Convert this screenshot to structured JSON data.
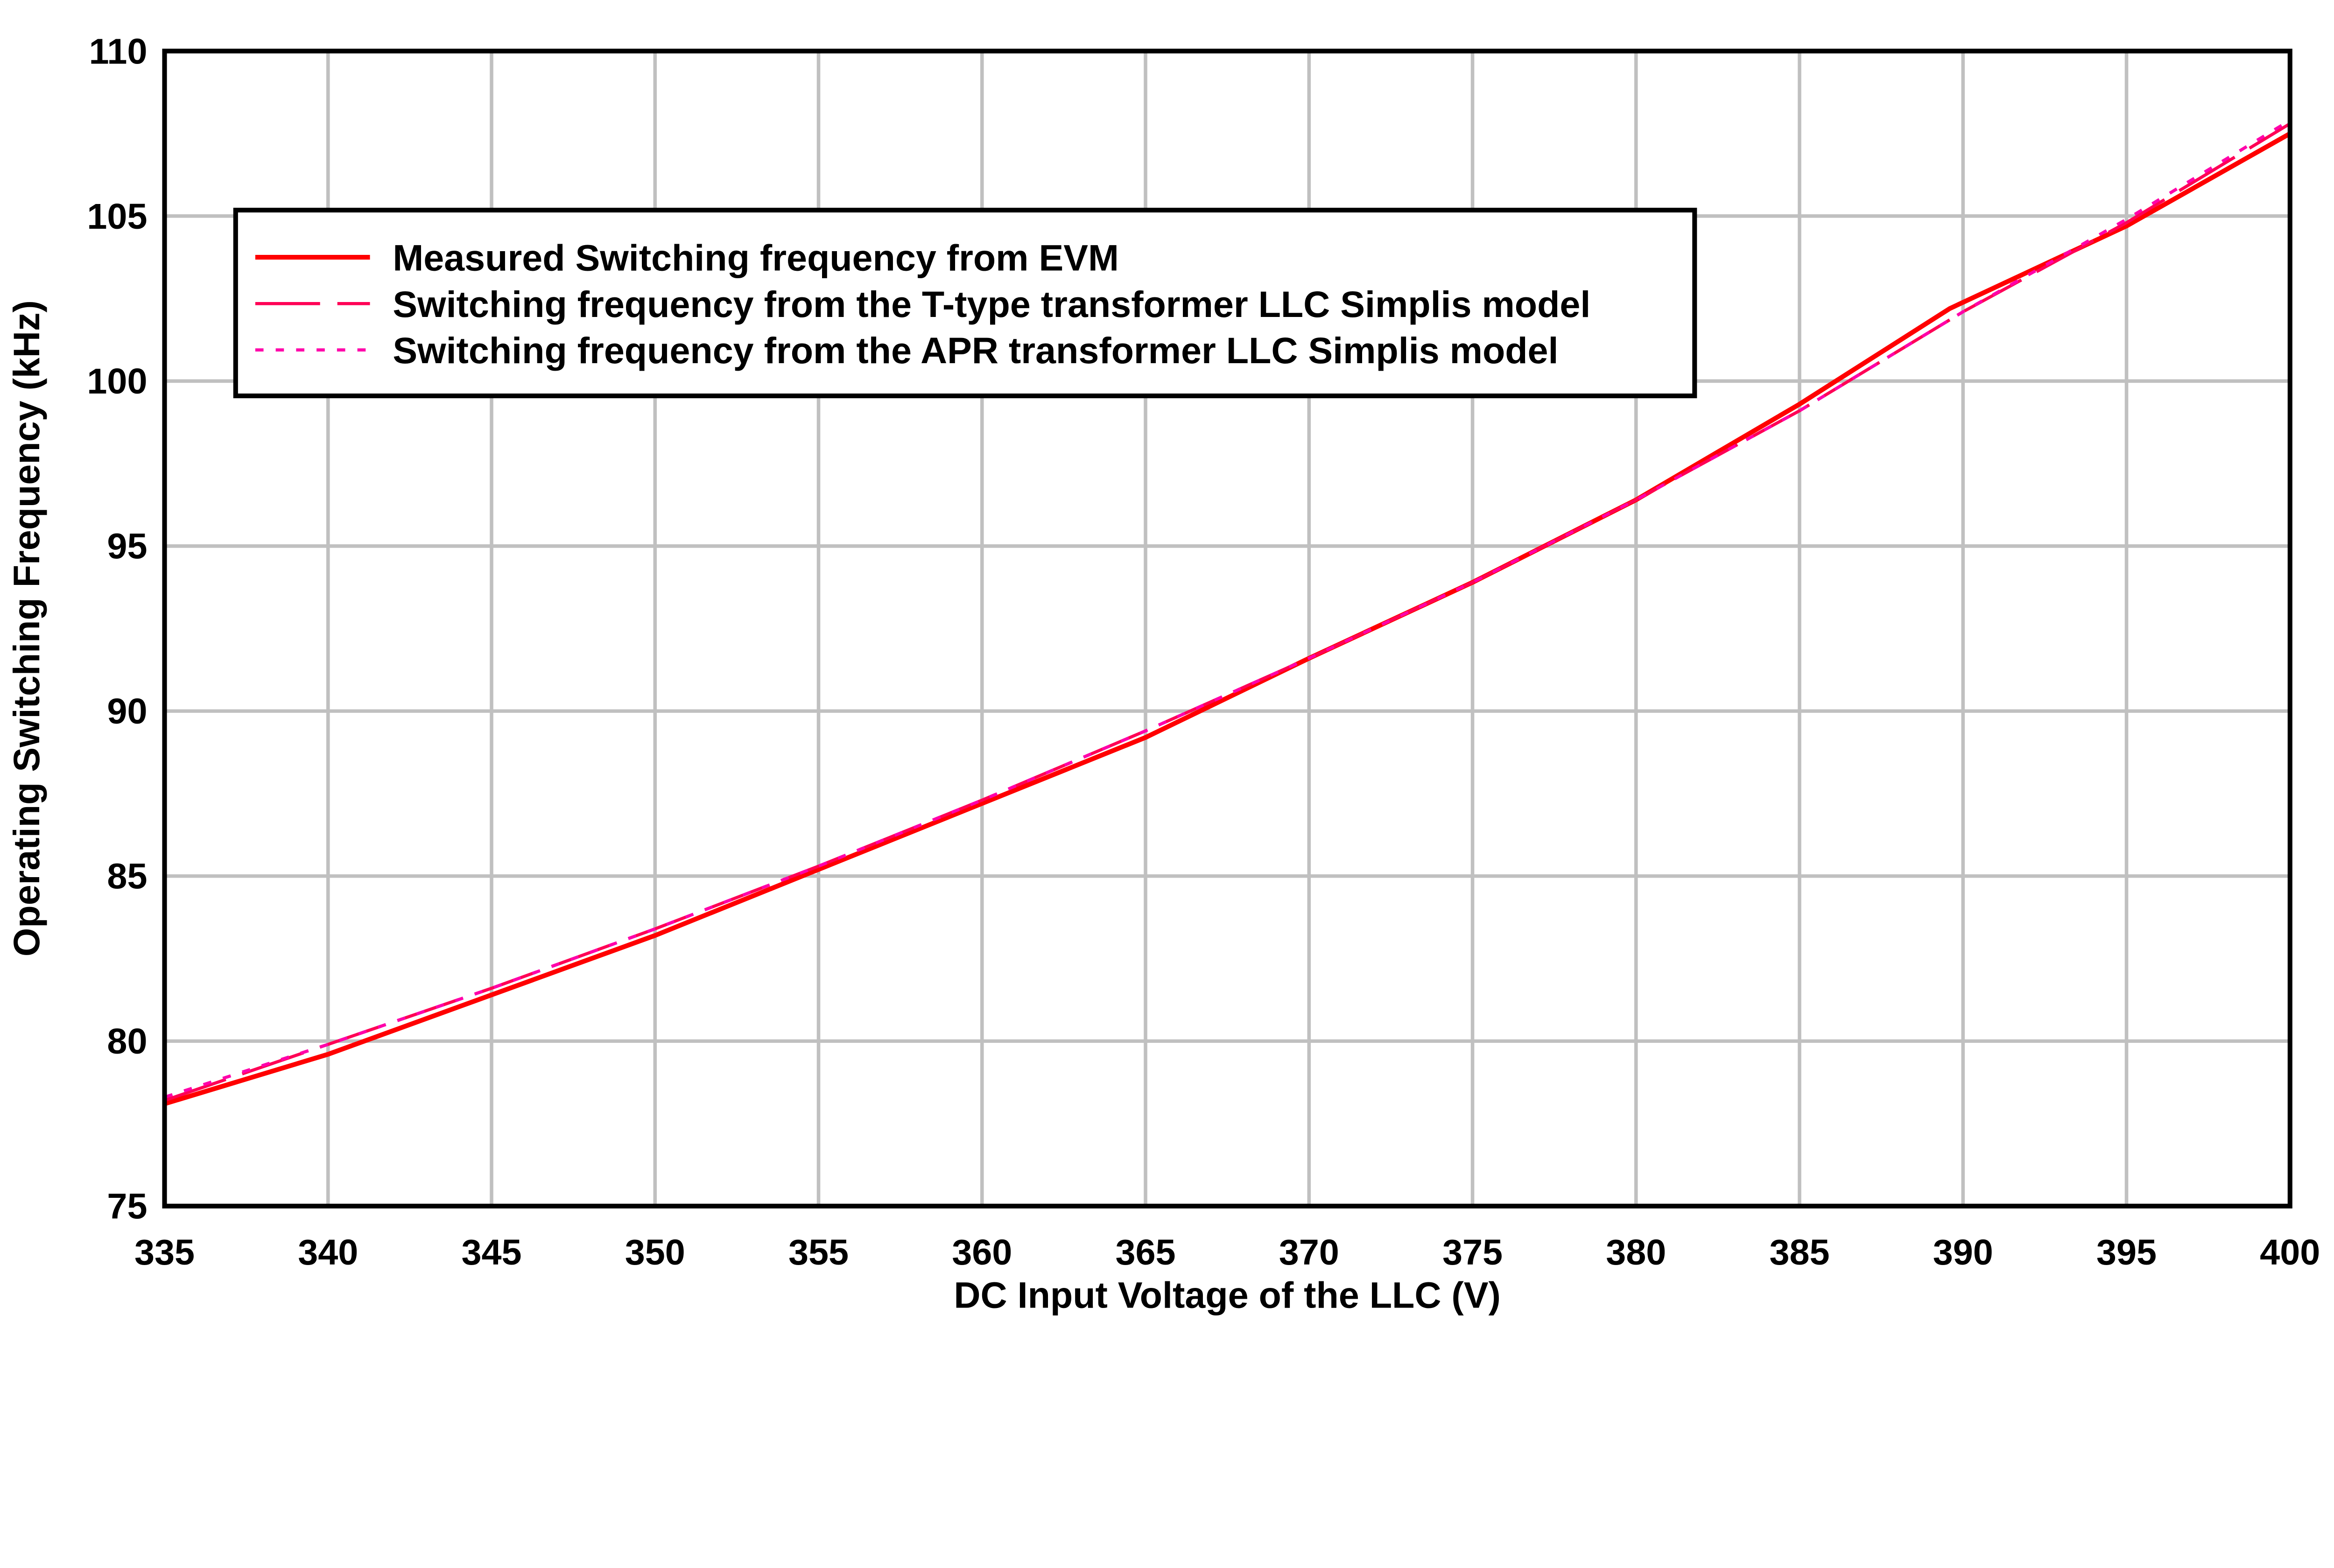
{
  "chart_data": {
    "type": "line",
    "xlabel": "DC Input Voltage of the LLC (V)",
    "ylabel": "Operating Switching Frequency (kHz)",
    "xlim": [
      335,
      400
    ],
    "ylim": [
      75,
      110
    ],
    "xticks": [
      335,
      340,
      345,
      350,
      355,
      360,
      365,
      370,
      375,
      380,
      385,
      390,
      395,
      400
    ],
    "yticks": [
      75,
      80,
      85,
      90,
      95,
      100,
      105,
      110
    ],
    "grid": true,
    "legend_position": "top-left",
    "series": [
      {
        "name": "Measured Switching frequency from EVM",
        "color": "#ff0000",
        "style": "solid",
        "x": [
          335,
          340,
          345,
          350,
          355,
          360,
          365,
          370,
          375,
          380,
          385,
          389.6,
          395,
          400
        ],
        "y": [
          78.1,
          79.6,
          81.4,
          83.2,
          85.2,
          87.2,
          89.2,
          91.6,
          93.9,
          96.4,
          99.3,
          102.2,
          104.7,
          107.5
        ]
      },
      {
        "name": "Switching frequency from the T-type transformer LLC Simplis model",
        "color": "#ff0055",
        "style": "dashed",
        "x": [
          335,
          340,
          345,
          350,
          355,
          360,
          365,
          370,
          375,
          380,
          385,
          390,
          395,
          400
        ],
        "y": [
          78.2,
          79.9,
          81.6,
          83.4,
          85.3,
          87.3,
          89.4,
          91.6,
          93.9,
          96.4,
          99.1,
          102.1,
          104.8,
          107.8
        ]
      },
      {
        "name": "Switching frequency from the APR transformer LLC Simplis model",
        "color": "#ff00aa",
        "style": "dotted",
        "x": [
          335,
          340,
          345,
          350,
          355,
          360,
          365,
          370,
          375,
          380,
          385,
          390,
          395,
          400
        ],
        "y": [
          78.3,
          79.9,
          81.6,
          83.4,
          85.3,
          87.3,
          89.4,
          91.6,
          93.9,
          96.4,
          99.1,
          102.1,
          104.9,
          107.9
        ]
      }
    ]
  }
}
